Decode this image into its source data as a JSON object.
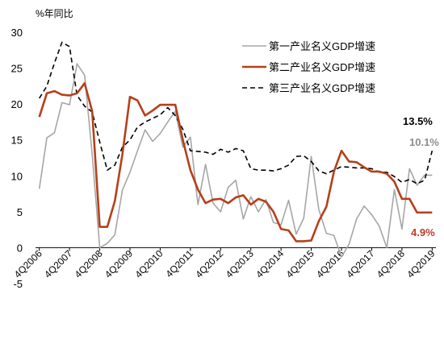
{
  "chart_data": {
    "type": "line",
    "ylabel": "%年同比",
    "ylim": [
      -5,
      30
    ],
    "yticks": [
      -5,
      0,
      5,
      10,
      15,
      20,
      25,
      30
    ],
    "x": [
      "4Q2006",
      "1Q2007",
      "2Q2007",
      "3Q2007",
      "4Q2007",
      "1Q2008",
      "2Q2008",
      "3Q2008",
      "4Q2008",
      "1Q2009",
      "2Q2009",
      "3Q2009",
      "4Q2009",
      "1Q2010",
      "2Q2010",
      "3Q2010",
      "4Q2010",
      "1Q2011",
      "2Q2011",
      "3Q2011",
      "4Q2011",
      "1Q2012",
      "2Q2012",
      "3Q2012",
      "4Q2012",
      "1Q2013",
      "2Q2013",
      "3Q2013",
      "4Q2013",
      "1Q2014",
      "2Q2014",
      "3Q2014",
      "4Q2014",
      "1Q2015",
      "2Q2015",
      "3Q2015",
      "4Q2015",
      "1Q2016",
      "2Q2016",
      "3Q2016",
      "4Q2016",
      "1Q2017",
      "2Q2017",
      "3Q2017",
      "4Q2017",
      "1Q2018",
      "2Q2018",
      "3Q2018",
      "4Q2018",
      "1Q2019",
      "2Q2019",
      "3Q2019",
      "4Q2019"
    ],
    "xtick_labels": [
      "4Q2006",
      "4Q2007",
      "4Q2008",
      "4Q2009",
      "4Q2010",
      "4Q2011",
      "4Q2012",
      "4Q2013",
      "4Q2014",
      "4Q2015",
      "4Q2016",
      "4Q2017",
      "4Q2018",
      "4Q2019"
    ],
    "series": [
      {
        "name": "第一产业名义GDP增速",
        "color": "#a6a6a6",
        "dash": "solid",
        "values": [
          8.2,
          15.3,
          16,
          20.2,
          19.9,
          25.6,
          24,
          13,
          0,
          0.6,
          1.8,
          8,
          10.5,
          13.5,
          16.4,
          14.8,
          15.9,
          17.5,
          19,
          14,
          15.4,
          6,
          11.6,
          6.2,
          5,
          8.4,
          9.4,
          4,
          7.1,
          5,
          6.7,
          3.5,
          3.2,
          6.6,
          1.9,
          4.1,
          12.7,
          5.3,
          2,
          1.7,
          -1.3,
          0.5,
          4,
          5.8,
          4.6,
          3,
          0,
          8.1,
          2.6,
          11,
          8.7,
          10.1,
          10.1
        ]
      },
      {
        "name": "第二产业名义GDP增速",
        "color": "#b5401b",
        "dash": "solid",
        "values": [
          18.2,
          21.5,
          21.8,
          21.3,
          21.2,
          21.5,
          22.9,
          19,
          2.9,
          2.9,
          6.5,
          13,
          21,
          20.5,
          18.4,
          19.1,
          19.9,
          19.9,
          19.9,
          15,
          10.8,
          8.1,
          6.2,
          6.7,
          6.8,
          6.2,
          7,
          7.3,
          6,
          6.8,
          6.4,
          5,
          2.6,
          2.4,
          0.9,
          0.9,
          1,
          3.7,
          5.7,
          10.6,
          13.5,
          12,
          11.9,
          11.2,
          10.6,
          10.6,
          10.3,
          9.2,
          6.8,
          6.8,
          4.9,
          4.9,
          4.9
        ]
      },
      {
        "name": "第三产业名义GDP增速",
        "color": "#000000",
        "dash": "dashed",
        "values": [
          20.8,
          22.5,
          25.7,
          28.6,
          28,
          21.2,
          19.7,
          18.9,
          14.7,
          10.8,
          11.5,
          14,
          15,
          16.8,
          17.5,
          18,
          18.5,
          19.5,
          18.4,
          16.5,
          13.5,
          13.4,
          13.3,
          13,
          13.7,
          13.3,
          13.8,
          13.5,
          11,
          10.8,
          10.8,
          10.7,
          11,
          11.5,
          12.7,
          12.8,
          12,
          10.7,
          10.3,
          10.8,
          11.3,
          11.2,
          11.1,
          11.1,
          11,
          10.5,
          10.5,
          9.9,
          9.1,
          9.5,
          8.9,
          9.4,
          13.5
        ]
      }
    ],
    "annotations": [
      {
        "text": "13.5%",
        "color": "#000000"
      },
      {
        "text": "10.1%",
        "color": "#8c8c8c"
      },
      {
        "text": "4.9%",
        "color": "#c0392b"
      }
    ]
  }
}
